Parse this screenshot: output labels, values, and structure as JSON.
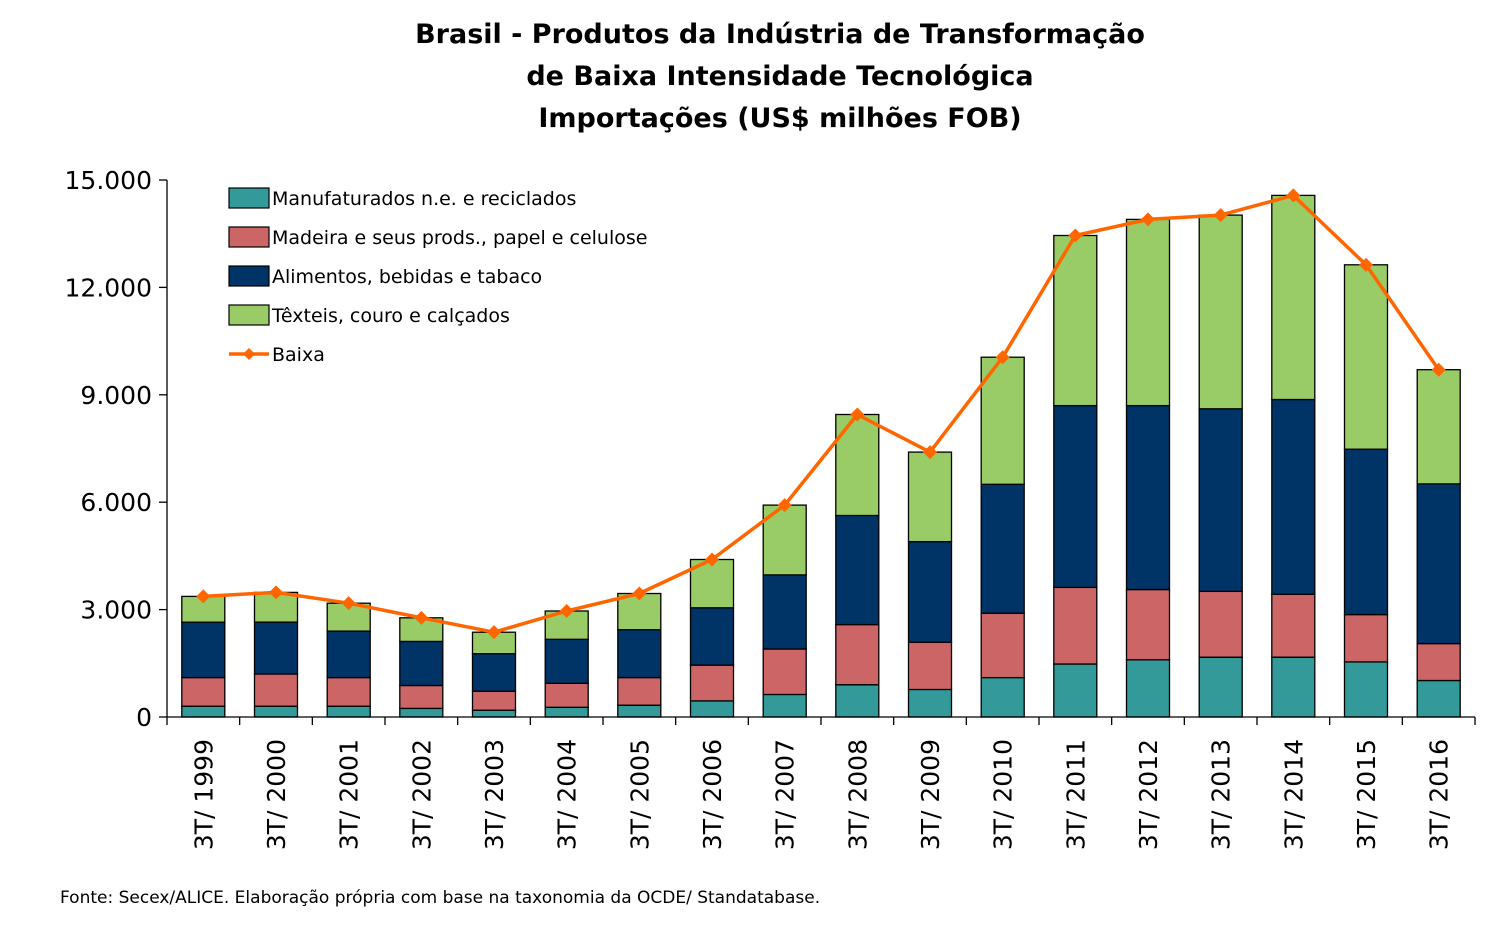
{
  "chart_data": {
    "type": "bar",
    "title_lines": [
      "Brasil - Produtos da Indústria de Transformação",
      "de Baixa Intensidade Tecnológica",
      "Importações (US$ milhões FOB)"
    ],
    "source": "Fonte: Secex/ALICE. Elaboração própria com base na taxonomia da OCDE/ Standatabase.",
    "stacked": true,
    "ylim": [
      0,
      15000
    ],
    "yticks": [
      0,
      3000,
      6000,
      9000,
      12000,
      15000
    ],
    "ytick_labels": [
      "0",
      "3.000",
      "6.000",
      "9.000",
      "12.000",
      "15.000"
    ],
    "categories": [
      "3T/ 1999",
      "3T/ 2000",
      "3T/ 2001",
      "3T/ 2002",
      "3T/ 2003",
      "3T/ 2004",
      "3T/ 2005",
      "3T/ 2006",
      "3T/ 2007",
      "3T/ 2008",
      "3T/ 2009",
      "3T/ 2010",
      "3T/ 2011",
      "3T/ 2012",
      "3T/ 2013",
      "3T/ 2014",
      "3T/ 2015",
      "3T/ 2016"
    ],
    "series": [
      {
        "name": "Manufaturados n.e. e reciclados",
        "kind": "bar",
        "color": "#339999",
        "values": [
          300,
          300,
          300,
          240,
          190,
          270,
          330,
          450,
          630,
          900,
          770,
          1100,
          1480,
          1600,
          1670,
          1670,
          1540,
          1020
        ]
      },
      {
        "name": "Madeira e seus prods., papel e celulose",
        "kind": "bar",
        "color": "#CC6666",
        "values": [
          800,
          900,
          800,
          640,
          530,
          670,
          770,
          1000,
          1270,
          1680,
          1320,
          1800,
          2140,
          1960,
          1840,
          1760,
          1320,
          1030
        ]
      },
      {
        "name": "Alimentos, bebidas e tabaco",
        "kind": "bar",
        "color": "#003366",
        "values": [
          1550,
          1450,
          1300,
          1230,
          1050,
          1230,
          1340,
          1600,
          2070,
          3050,
          2810,
          3600,
          5080,
          5140,
          5100,
          5440,
          4620,
          4460
        ]
      },
      {
        "name": "Têxteis, couro e calçados",
        "kind": "bar",
        "color": "#99CC66",
        "values": [
          720,
          830,
          780,
          660,
          600,
          790,
          1010,
          1350,
          1950,
          2820,
          2500,
          3550,
          4750,
          5200,
          5410,
          5700,
          5150,
          3190
        ]
      },
      {
        "name": "Baixa",
        "kind": "line",
        "color": "#FF6600",
        "values": [
          3370,
          3480,
          3180,
          2770,
          2370,
          2960,
          3450,
          4400,
          5920,
          8450,
          7400,
          10050,
          13450,
          13900,
          14020,
          14570,
          12630,
          9700
        ]
      }
    ],
    "legend_position": "top-left",
    "grid": false
  }
}
